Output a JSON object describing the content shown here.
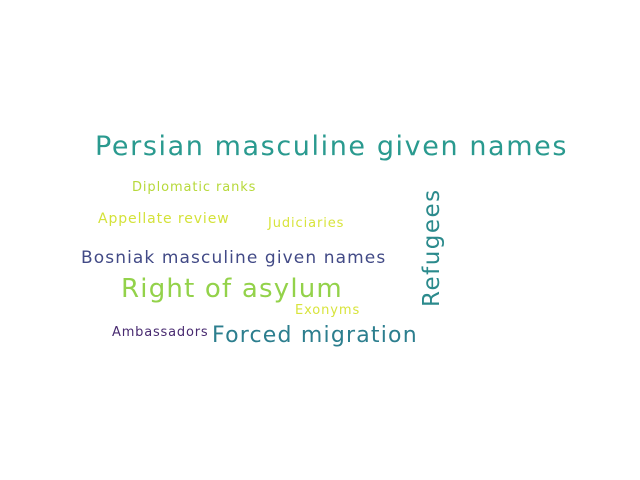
{
  "words": [
    {
      "id": "persian-masculine-given-names",
      "text": "Persian masculine given names",
      "color": "#2a9a8f"
    },
    {
      "id": "diplomatic-ranks",
      "text": "Diplomatic ranks",
      "color": "#b7d93a"
    },
    {
      "id": "refugees",
      "text": "Refugees",
      "color": "#2b8a8c"
    },
    {
      "id": "appellate-review",
      "text": "Appellate review",
      "color": "#d4e23a"
    },
    {
      "id": "judiciaries",
      "text": "Judiciaries",
      "color": "#d8e43c"
    },
    {
      "id": "bosniak-masculine-given-names",
      "text": "Bosniak masculine given names",
      "color": "#424a86"
    },
    {
      "id": "right-of-asylum",
      "text": "Right of asylum",
      "color": "#93d24a"
    },
    {
      "id": "exonyms",
      "text": "Exonyms",
      "color": "#d8e43c"
    },
    {
      "id": "ambassadors",
      "text": "Ambassadors",
      "color": "#482a70"
    },
    {
      "id": "forced-migration",
      "text": "Forced migration",
      "color": "#2c7e8e"
    }
  ]
}
